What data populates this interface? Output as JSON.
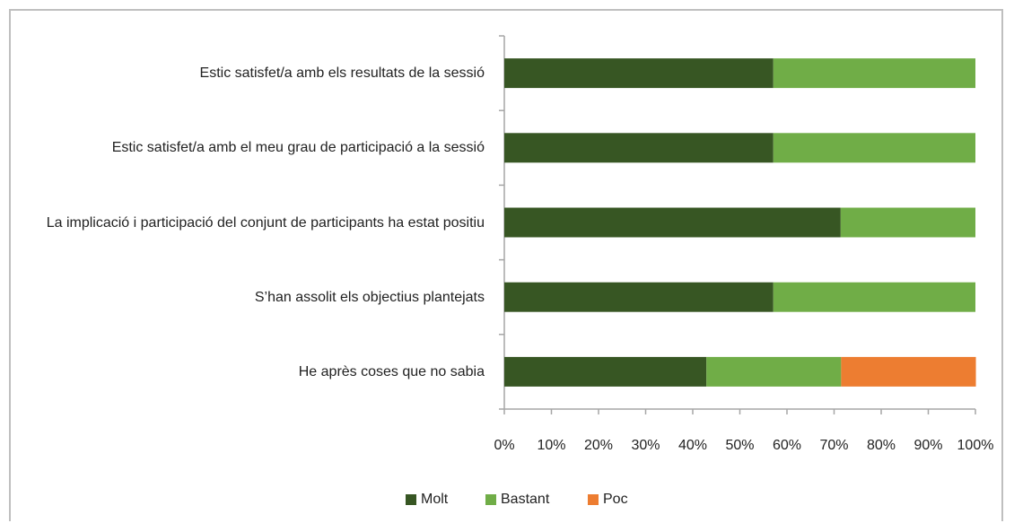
{
  "chart_data": {
    "type": "stacked-bar-horizontal",
    "categories": [
      "Estic satisfet/a amb els resultats de la sessió",
      "Estic satisfet/a amb el meu grau de participació a la sessió",
      "La implicació i participació del conjunt de participants ha estat positiu",
      "S’han assolit els objectius plantejats",
      "He après coses que no sabia"
    ],
    "series": [
      {
        "name": "Molt",
        "color": "#375623",
        "values": [
          57.1,
          57.1,
          71.4,
          57.1,
          42.9
        ]
      },
      {
        "name": "Bastant",
        "color": "#70ad47",
        "values": [
          42.9,
          42.9,
          28.6,
          42.9,
          28.6
        ]
      },
      {
        "name": "Poc",
        "color": "#ed7d31",
        "values": [
          0,
          0,
          0,
          0,
          28.6
        ]
      }
    ],
    "xlim": [
      0,
      100
    ],
    "xticks": [
      {
        "value": 0,
        "label": "0%"
      },
      {
        "value": 10,
        "label": "10%"
      },
      {
        "value": 20,
        "label": "20%"
      },
      {
        "value": 30,
        "label": "30%"
      },
      {
        "value": 40,
        "label": "40%"
      },
      {
        "value": 50,
        "label": "50%"
      },
      {
        "value": 60,
        "label": "60%"
      },
      {
        "value": 70,
        "label": "70%"
      },
      {
        "value": 80,
        "label": "80%"
      },
      {
        "value": 90,
        "label": "90%"
      },
      {
        "value": 100,
        "label": "100%"
      }
    ],
    "legend": "bottom"
  }
}
